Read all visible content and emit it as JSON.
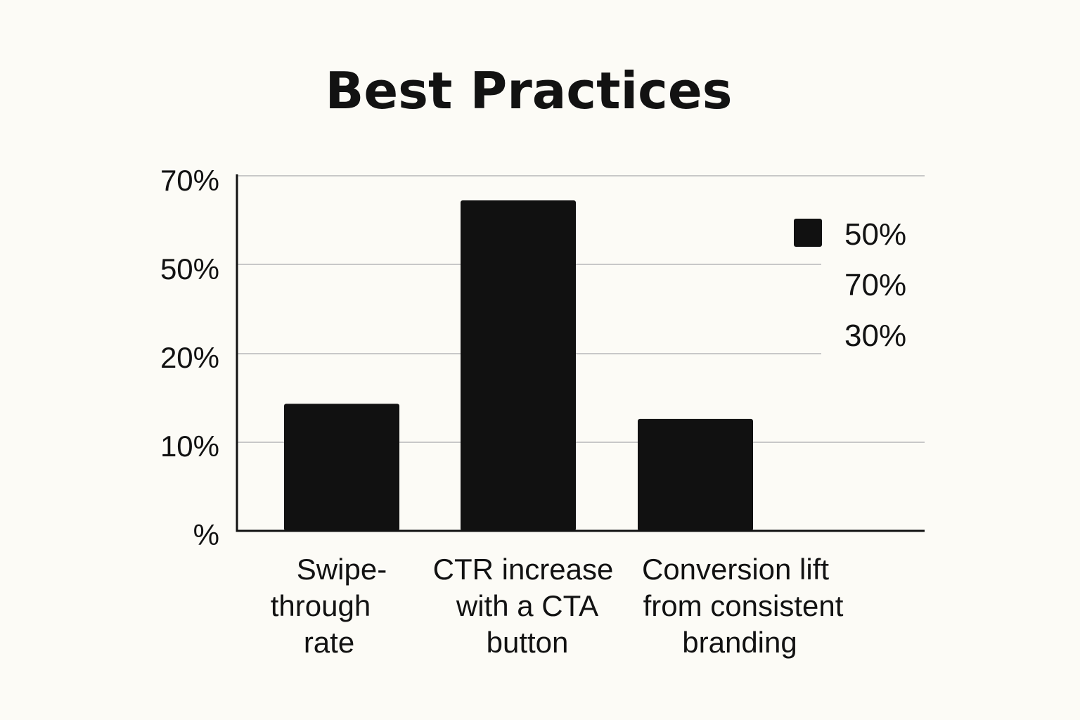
{
  "chart_data": {
    "type": "bar",
    "title": "Best Practices",
    "categories": [
      "Swipe-through rate",
      "CTR increase with a CTA button",
      "Conversion lift from consistent branding"
    ],
    "category_lines": [
      [
        "Swipe-",
        "through",
        "rate"
      ],
      [
        "CTR increase",
        "with a CTA",
        "button"
      ],
      [
        "Conversion lift",
        "from consistent",
        "branding"
      ]
    ],
    "values": [
      25,
      65,
      22
    ],
    "y_ticks": [
      "%",
      "10%",
      "20%",
      "50%",
      "70%"
    ],
    "legend": {
      "placement": "right",
      "entries": [
        "50%",
        "70%",
        "30%"
      ]
    },
    "grid": true,
    "colors": {
      "bar": "#111111",
      "grid": "#c8c8c8",
      "axis": "#111111",
      "background": "#fcfbf6"
    }
  }
}
